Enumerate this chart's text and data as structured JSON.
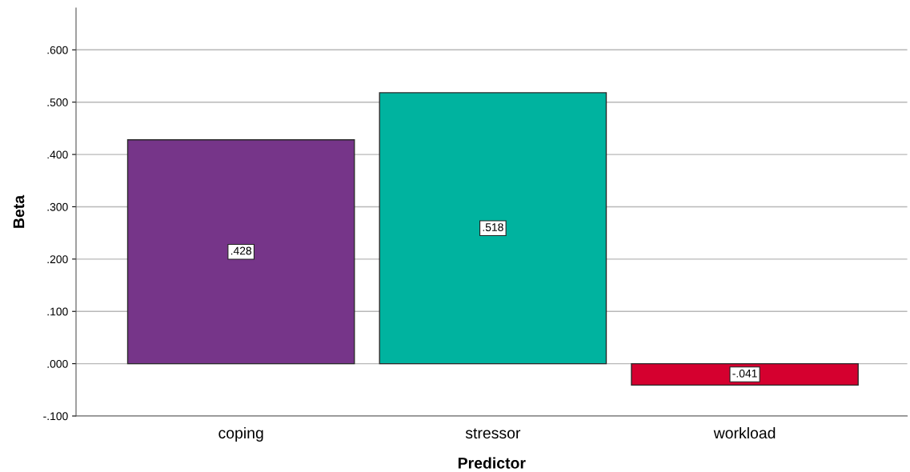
{
  "chart_data": {
    "type": "bar",
    "xlabel": "Predictor",
    "ylabel": "Beta",
    "categories": [
      "coping",
      "stressor",
      "workload"
    ],
    "values": [
      0.428,
      0.518,
      -0.041
    ],
    "colors": [
      "#763589",
      "#00b39f",
      "#d5002f"
    ],
    "value_labels": [
      ".428",
      ".518",
      "-.041"
    ],
    "ylim": [
      -0.1,
      0.68
    ],
    "yticks": [
      {
        "value": -0.1,
        "label": "-.100"
      },
      {
        "value": 0,
        "label": ".000"
      },
      {
        "value": 0.1,
        "label": ".100"
      },
      {
        "value": 0.2,
        "label": ".200"
      },
      {
        "value": 0.3,
        "label": ".300"
      },
      {
        "value": 0.4,
        "label": ".400"
      },
      {
        "value": 0.5,
        "label": ".500"
      },
      {
        "value": 0.6,
        "label": ".600"
      }
    ],
    "grid": "y",
    "legend": false
  }
}
